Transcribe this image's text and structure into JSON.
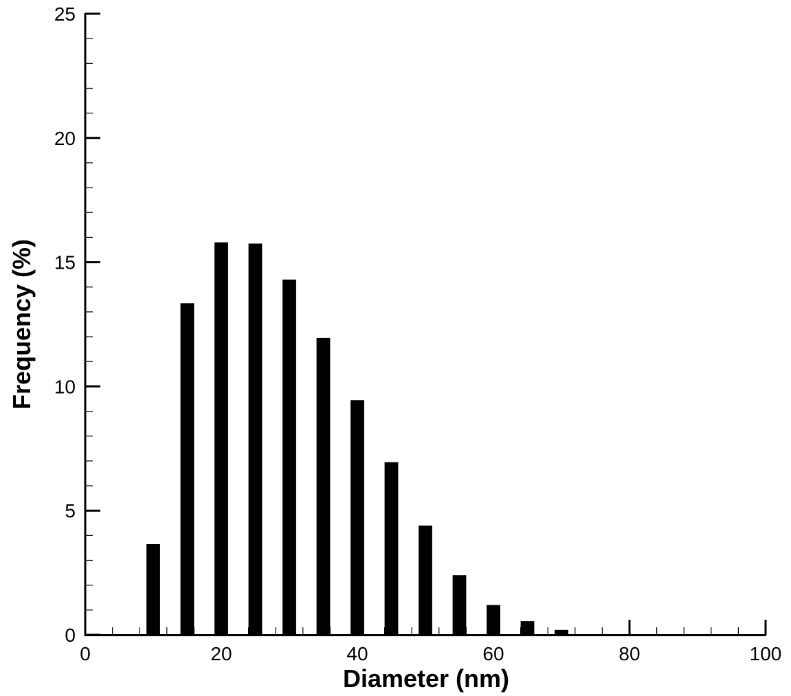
{
  "chart_data": {
    "type": "bar",
    "title": "",
    "xlabel": "Diameter (nm)",
    "ylabel": "Frequency (%)",
    "xlim": [
      0,
      100
    ],
    "ylim": [
      0,
      25
    ],
    "x_ticks": [
      0,
      20,
      40,
      60,
      80,
      100
    ],
    "y_ticks": [
      0,
      5,
      10,
      15,
      20,
      25
    ],
    "x_minor_step": 4,
    "y_minor_step": 1,
    "bar_width": 2,
    "x": [
      10,
      15,
      20,
      25,
      30,
      35,
      40,
      45,
      50,
      55,
      60,
      65,
      70
    ],
    "values": [
      3.65,
      13.35,
      15.8,
      15.75,
      14.3,
      11.95,
      9.45,
      6.95,
      4.4,
      2.4,
      1.2,
      0.55,
      0.2
    ],
    "bar_color": "#000000",
    "grid": false,
    "legend": "none"
  }
}
